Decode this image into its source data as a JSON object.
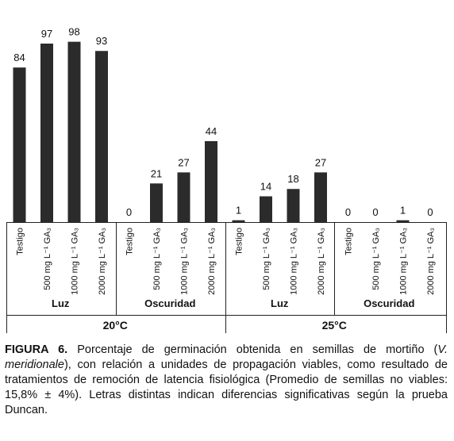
{
  "chart_data": {
    "type": "bar",
    "categories": [
      "Testigo",
      "500 mg L⁻¹ GA₃",
      "1000 mg L⁻¹ GA₃",
      "2000 mg L⁻¹ GA₃",
      "Testigo",
      "500 mg L⁻¹ GA₃",
      "1000 mg L⁻¹ GA₃",
      "2000 mg L⁻¹ GA₃",
      "Testigo",
      "500 mg L⁻¹ GA₃",
      "1000 mg L⁻¹ GA₃",
      "2000 mg L⁻¹ GA₃",
      "Testigo",
      "500 mg L⁻¹ GA₃",
      "1000 mg L⁻¹ GA₃",
      "2000 mg L⁻¹ GA₃"
    ],
    "values": [
      84,
      97,
      98,
      93,
      0,
      21,
      27,
      44,
      1,
      14,
      18,
      27,
      0,
      0,
      1,
      0
    ],
    "color": "#2b2b2b",
    "groups": [
      "Luz",
      "Oscuridad",
      "Luz",
      "Oscuridad"
    ],
    "temperatures": [
      "20°C",
      "25°C"
    ]
  },
  "caption": {
    "label": "FIGURA 6.",
    "text_before": "Porcentaje de germinación obtenida en semillas de mortiño (",
    "species": "V. meridionale",
    "text_after": "), con relación a unidades de propagación viables, como resultado de tratamientos de remoción de latencia fisiológica (Promedio de semillas no viables: 15,8% ± 4%). Letras distintas indican diferencias significativas según la prueba Duncan."
  }
}
